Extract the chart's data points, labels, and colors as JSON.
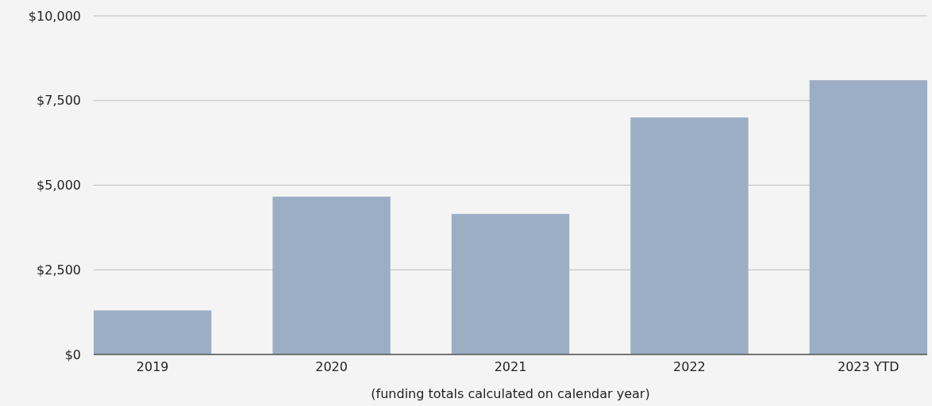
{
  "chart_data": {
    "type": "bar",
    "xlabel": "(funding totals calculated on calendar year)",
    "categories": [
      "2019",
      "2020",
      "2021",
      "2022",
      "2023 YTD"
    ],
    "values": [
      1300,
      4660,
      4150,
      7000,
      8100
    ],
    "color": "#9caec4",
    "ylim": [
      0,
      10000
    ],
    "yticks": [
      {
        "value": 0,
        "label": "$0"
      },
      {
        "value": 2500,
        "label": "$2,500"
      },
      {
        "value": 5000,
        "label": "$5,000"
      },
      {
        "value": 7500,
        "label": "$7,500"
      },
      {
        "value": 10000,
        "label": "$10,000"
      }
    ],
    "grid": "y"
  }
}
